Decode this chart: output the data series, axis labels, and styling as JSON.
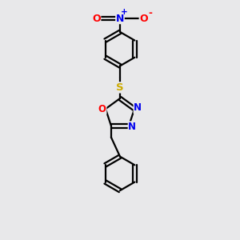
{
  "bg_color": "#e8e8ea",
  "bond_color": "#000000",
  "bond_width": 1.6,
  "atom_colors": {
    "O": "#ff0000",
    "N": "#0000ee",
    "S": "#ccaa00",
    "C": "#000000"
  },
  "font_size": 8.5,
  "fig_size": [
    3.0,
    3.0
  ],
  "dpi": 100,
  "xlim": [
    0,
    10
  ],
  "ylim": [
    0,
    13
  ]
}
